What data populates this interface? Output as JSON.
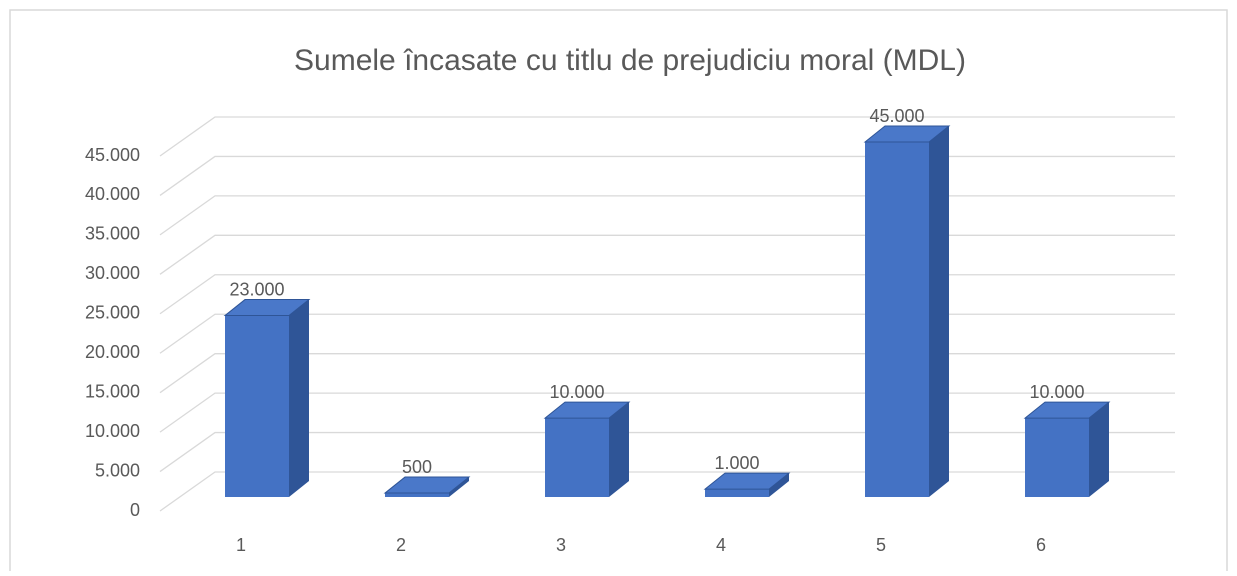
{
  "chart_data": {
    "type": "bar3d",
    "title": "Sumele încasate cu titlu de prejudiciu moral (MDL)",
    "categories": [
      "1",
      "2",
      "3",
      "4",
      "5",
      "6"
    ],
    "values": [
      23000,
      500,
      10000,
      1000,
      45000,
      10000
    ],
    "value_labels": [
      "23.000",
      "500",
      "10.000",
      "1.000",
      "45.000",
      "10.000"
    ],
    "color": "#4472c4",
    "ylim": [
      0,
      45000
    ],
    "yticks": [
      0,
      {
        "value": 5000,
        "label": "5.000"
      },
      {
        "value": 10000,
        "label": "10.000"
      },
      {
        "value": 15000,
        "label": "15.000"
      },
      {
        "value": 20000,
        "label": "20.000"
      },
      {
        "value": 25000,
        "label": "25.000"
      },
      {
        "value": 30000,
        "label": "30.000"
      },
      {
        "value": 35000,
        "label": "35.000"
      },
      {
        "value": 40000,
        "label": "40.000"
      },
      {
        "value": 45000,
        "label": "45.000"
      }
    ],
    "grid": true
  }
}
